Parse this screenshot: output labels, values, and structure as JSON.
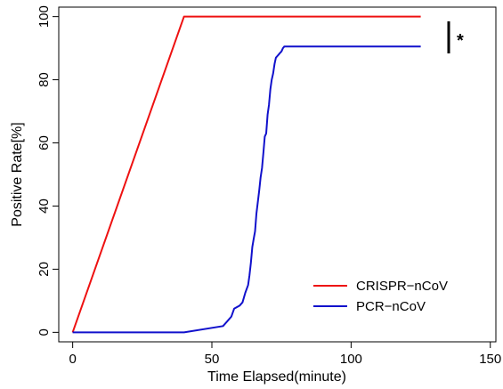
{
  "chart_data": {
    "type": "line",
    "title": "",
    "xlabel": "Time Elapsed(minute)",
    "ylabel": "Positive Rate[%]",
    "xlim": [
      -5,
      152
    ],
    "ylim": [
      -3,
      103
    ],
    "x_ticks": [
      0,
      50,
      100,
      150
    ],
    "y_ticks": [
      0,
      20,
      40,
      60,
      80,
      100
    ],
    "grid": false,
    "legend_position": "bottom-right",
    "annotation": "*",
    "series": [
      {
        "name": "CRISPR−nCoV",
        "color": "#ee1111",
        "x": [
          0,
          40,
          125
        ],
        "y": [
          0,
          100,
          100
        ]
      },
      {
        "name": "PCR−nCoV",
        "color": "#1111cc",
        "x": [
          0,
          40,
          54,
          56,
          57,
          58,
          60,
          61,
          62,
          63,
          63.5,
          64,
          64.5,
          65,
          65.5,
          66,
          67,
          67.5,
          68,
          68.5,
          69,
          69.5,
          70,
          70.5,
          71,
          71.5,
          72,
          72.5,
          73,
          73.5,
          74,
          74.5,
          75,
          75.5,
          76,
          76.5,
          125
        ],
        "y": [
          0,
          0,
          2,
          4,
          5,
          7.5,
          8.5,
          9.5,
          12.5,
          15,
          18,
          22,
          27,
          29.5,
          32,
          37.5,
          45,
          49,
          52,
          57,
          62,
          63,
          69,
          72,
          77,
          80,
          82,
          85,
          87,
          87.5,
          88,
          88.5,
          89,
          90,
          90.5,
          90.5,
          90.5
        ]
      }
    ]
  }
}
